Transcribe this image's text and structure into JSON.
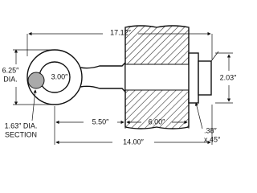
{
  "dimensions": {
    "overall_length": "17.12″",
    "eye_outer_diameter": {
      "value": "6.25″",
      "unit": "DIA."
    },
    "eye_inner_diameter": "3.00″",
    "flange_height": "2.03″",
    "section": {
      "value": "1.63″ DIA.",
      "label": "SECTION"
    },
    "shank_length": "5.50″",
    "thread_length": "6.00″",
    "chamfer": {
      "value": ".38″",
      "angle": "x 45°"
    },
    "total_length": "14.00″"
  }
}
